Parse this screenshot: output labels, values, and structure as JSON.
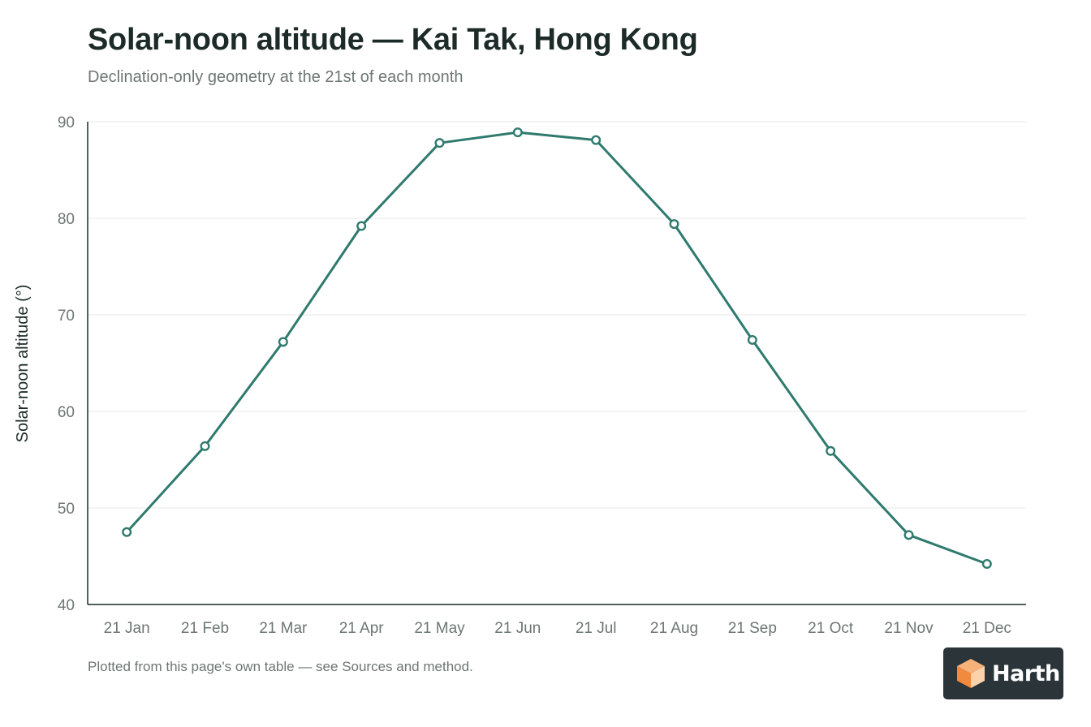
{
  "chart_data": {
    "type": "line",
    "title": "Solar-noon altitude — Kai Tak, Hong Kong",
    "subtitle": "Declination-only geometry at the 21st of each month",
    "xlabel": "",
    "ylabel": "Solar-noon altitude (°)",
    "categories": [
      "21 Jan",
      "21 Feb",
      "21 Mar",
      "21 Apr",
      "21 May",
      "21 Jun",
      "21 Jul",
      "21 Aug",
      "21 Sep",
      "21 Oct",
      "21 Nov",
      "21 Dec"
    ],
    "series": [
      {
        "values": [
          47.5,
          56.4,
          67.2,
          79.2,
          87.8,
          88.9,
          88.1,
          79.4,
          67.4,
          55.9,
          47.2,
          44.2
        ],
        "color": "#2f7a6e"
      }
    ],
    "ylim": [
      40,
      90
    ],
    "yticks": [
      40,
      50,
      60,
      70,
      80,
      90
    ],
    "grid": true,
    "legend": "none"
  },
  "footnote": "Plotted from this page's own table — see Sources and method.",
  "logo": {
    "text": "Harth",
    "icon": "orange-cube-icon"
  }
}
